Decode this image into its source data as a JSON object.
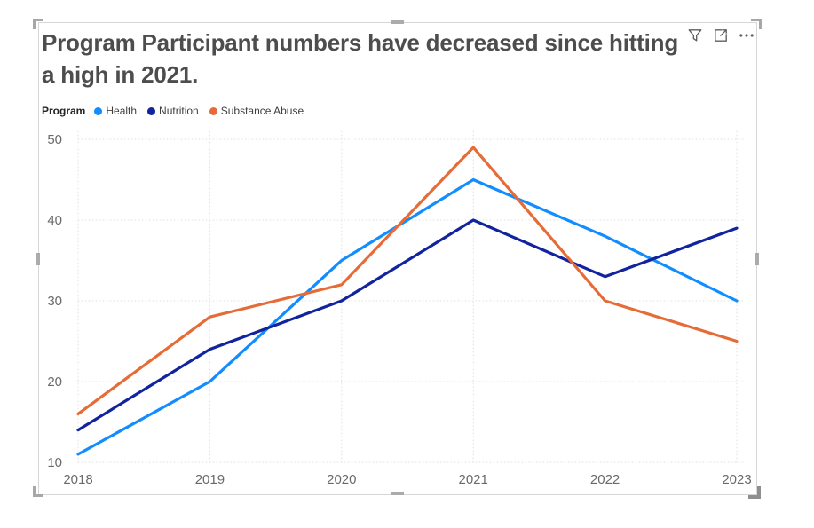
{
  "visual": {
    "title": "Program Participant numbers have decreased since hitting a high in 2021.",
    "header_icons": [
      "filter-icon",
      "focus-mode-icon",
      "more-options-icon"
    ]
  },
  "legend": {
    "label": "Program",
    "items": [
      {
        "label": "Health",
        "color": "#118DFF"
      },
      {
        "label": "Nutrition",
        "color": "#12239E"
      },
      {
        "label": "Substance Abuse",
        "color": "#E66C37"
      }
    ]
  },
  "chart_data": {
    "type": "line",
    "title": "Program Participant numbers have decreased since hitting a high in 2021.",
    "x": [
      "2018",
      "2019",
      "2020",
      "2021",
      "2022",
      "2023"
    ],
    "series": [
      {
        "name": "Health",
        "color": "#118DFF",
        "values": [
          11,
          20,
          35,
          45,
          38,
          30
        ]
      },
      {
        "name": "Nutrition",
        "color": "#12239E",
        "values": [
          14,
          24,
          30,
          40,
          33,
          39
        ]
      },
      {
        "name": "Substance Abuse",
        "color": "#E66C37",
        "values": [
          16,
          28,
          32,
          49,
          30,
          25
        ]
      }
    ],
    "xlabel": "",
    "ylabel": "",
    "ylim": [
      10,
      50
    ],
    "yticks": [
      10,
      20,
      30,
      40,
      50
    ],
    "grid": true,
    "legend_position": "top"
  },
  "colors": {
    "title_text": "#4d4d4d",
    "axis_text": "#6a6a6a",
    "gridline": "#e2e2e2",
    "icon_gray": "#605E5C",
    "frame_border": "#d6d6d6",
    "handle_gray": "#ababab"
  }
}
